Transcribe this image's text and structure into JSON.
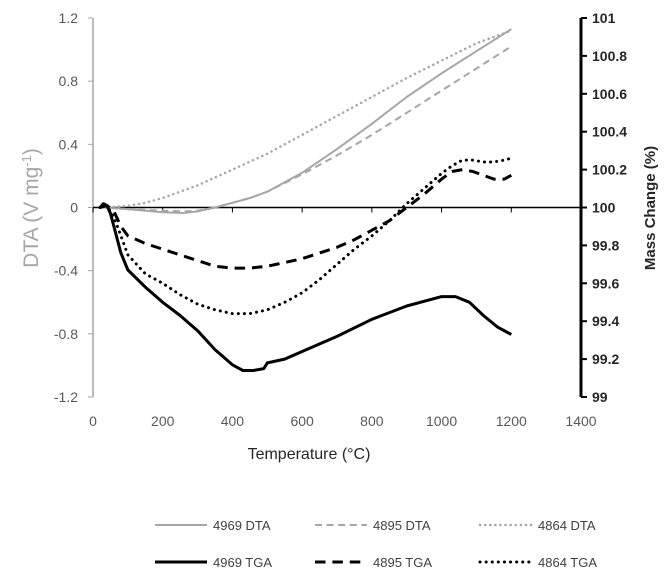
{
  "chart_data": {
    "type": "line",
    "xlabel": "Temperature (°C)",
    "ylabel_left": "DTA (V mg-1)",
    "ylabel_left_parts": {
      "base": "DTA (V mg",
      "sup": "-1",
      "end": ")"
    },
    "ylabel_right": "Mass Change (%)",
    "xlim": [
      0,
      1400
    ],
    "ylim_left": [
      -1.2,
      1.2
    ],
    "ylim_right": [
      99,
      101
    ],
    "x_ticks": [
      "0",
      "200",
      "400",
      "600",
      "800",
      "1000",
      "1200",
      "1400"
    ],
    "x_tick_values": [
      0,
      200,
      400,
      600,
      800,
      1000,
      1200,
      1400
    ],
    "y_left_ticks": [
      "1.2",
      "0.8",
      "0.4",
      "0",
      "-0.4",
      "-0.8",
      "-1.2"
    ],
    "y_left_tick_values": [
      1.2,
      0.8,
      0.4,
      0,
      -0.4,
      -0.8,
      -1.2
    ],
    "y_right_ticks": [
      "101",
      "100.8",
      "100.6",
      "100.4",
      "100.2",
      "100",
      "99.8",
      "99.6",
      "99.4",
      "99.2",
      "99"
    ],
    "y_right_tick_values": [
      101,
      100.8,
      100.6,
      100.4,
      100.2,
      100,
      99.8,
      99.6,
      99.4,
      99.2,
      99
    ],
    "grid": false,
    "legend_position": "bottom",
    "series": [
      {
        "name": "4969 DTA",
        "axis": "left",
        "color": "#a6a6a6",
        "dash": "solid",
        "width": 2,
        "x": [
          30,
          100,
          200,
          260,
          300,
          350,
          400,
          450,
          500,
          600,
          700,
          800,
          900,
          1000,
          1100,
          1200
        ],
        "y": [
          0.0,
          -0.01,
          -0.03,
          -0.035,
          -0.025,
          0.0,
          0.03,
          0.06,
          0.1,
          0.22,
          0.37,
          0.53,
          0.7,
          0.85,
          0.99,
          1.13
        ]
      },
      {
        "name": "4895 DTA",
        "axis": "left",
        "color": "#a6a6a6",
        "dash": "dashed",
        "width": 2,
        "x": [
          30,
          100,
          200,
          260,
          300,
          350,
          400,
          450,
          500,
          600,
          700,
          800,
          900,
          1000,
          1100,
          1200
        ],
        "y": [
          0.0,
          -0.01,
          -0.02,
          -0.025,
          -0.02,
          0.0,
          0.03,
          0.06,
          0.1,
          0.21,
          0.33,
          0.46,
          0.6,
          0.74,
          0.88,
          1.02
        ]
      },
      {
        "name": "4864 DTA",
        "axis": "left",
        "color": "#a6a6a6",
        "dash": "dotted",
        "width": 2.5,
        "x": [
          30,
          100,
          150,
          200,
          250,
          300,
          350,
          400,
          500,
          600,
          700,
          800,
          900,
          1000,
          1100,
          1200
        ],
        "y": [
          0.0,
          0.01,
          0.03,
          0.06,
          0.1,
          0.14,
          0.19,
          0.24,
          0.34,
          0.46,
          0.58,
          0.7,
          0.82,
          0.93,
          1.04,
          1.12
        ]
      },
      {
        "name": "4969 TGA",
        "axis": "right",
        "color": "#000000",
        "dash": "solid",
        "width": 3,
        "x": [
          20,
          30,
          40,
          50,
          60,
          70,
          80,
          100,
          150,
          200,
          250,
          300,
          350,
          400,
          430,
          460,
          490,
          500,
          550,
          600,
          700,
          800,
          900,
          1000,
          1040,
          1080,
          1120,
          1160,
          1200
        ],
        "y": [
          100.0,
          100.02,
          100.01,
          99.97,
          99.9,
          99.83,
          99.76,
          99.67,
          99.58,
          99.5,
          99.43,
          99.35,
          99.25,
          99.17,
          99.14,
          99.14,
          99.15,
          99.18,
          99.2,
          99.24,
          99.32,
          99.41,
          99.48,
          99.53,
          99.53,
          99.5,
          99.43,
          99.37,
          99.33
        ]
      },
      {
        "name": "4895 TGA",
        "axis": "right",
        "color": "#000000",
        "dash": "dashed",
        "width": 3,
        "x": [
          20,
          40,
          60,
          80,
          100,
          150,
          200,
          250,
          300,
          350,
          400,
          450,
          500,
          550,
          600,
          650,
          700,
          750,
          800,
          850,
          900,
          950,
          1000,
          1030,
          1060,
          1090,
          1120,
          1150,
          1180,
          1200
        ],
        "y": [
          100.0,
          100.01,
          99.98,
          99.9,
          99.85,
          99.81,
          99.78,
          99.75,
          99.72,
          99.69,
          99.68,
          99.68,
          99.69,
          99.71,
          99.73,
          99.76,
          99.79,
          99.83,
          99.88,
          99.93,
          100.0,
          100.07,
          100.15,
          100.19,
          100.2,
          100.19,
          100.17,
          100.15,
          100.15,
          100.17
        ]
      },
      {
        "name": "4864 TGA",
        "axis": "right",
        "color": "#000000",
        "dash": "dotted",
        "width": 3,
        "x": [
          20,
          40,
          60,
          80,
          100,
          150,
          200,
          250,
          300,
          350,
          400,
          450,
          500,
          550,
          600,
          650,
          700,
          750,
          800,
          850,
          900,
          950,
          1000,
          1030,
          1060,
          1090,
          1120,
          1150,
          1180,
          1200
        ],
        "y": [
          100.0,
          100.01,
          99.95,
          99.85,
          99.75,
          99.65,
          99.6,
          99.54,
          99.49,
          99.46,
          99.44,
          99.44,
          99.46,
          99.5,
          99.55,
          99.62,
          99.7,
          99.78,
          99.85,
          99.93,
          100.02,
          100.1,
          100.18,
          100.22,
          100.25,
          100.25,
          100.24,
          100.24,
          100.25,
          100.26
        ]
      }
    ]
  }
}
